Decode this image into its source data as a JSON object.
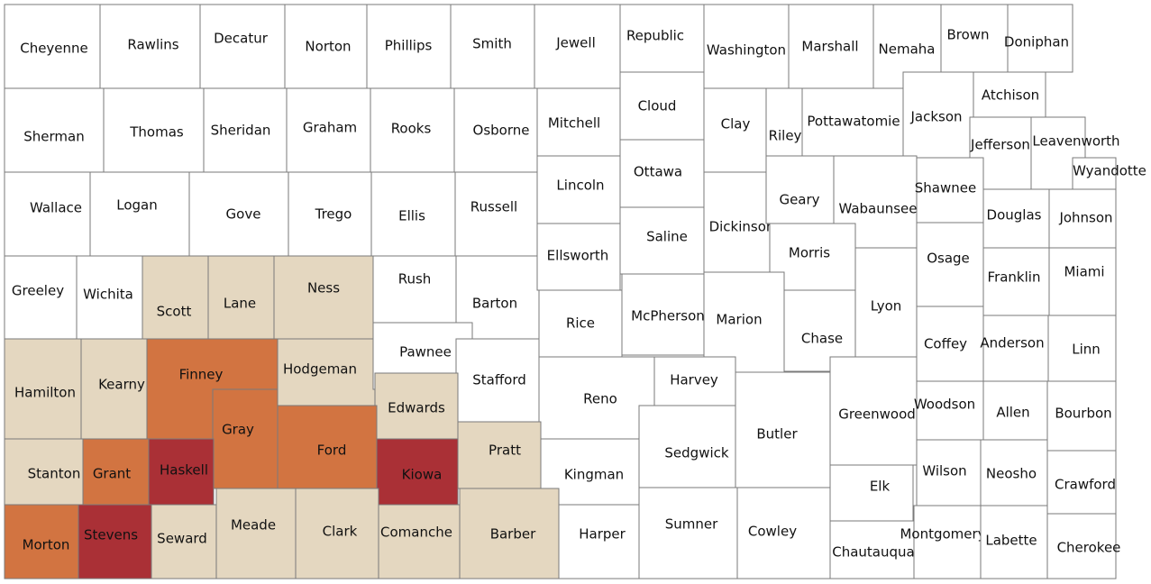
{
  "colors": {
    "none": "#ffffff",
    "low": "#e4d7c0",
    "medium": "#d27441",
    "high": "#aa3036",
    "border": "#7a7a7a"
  },
  "counties": [
    {
      "name": "Cheyenne",
      "level": "none"
    },
    {
      "name": "Rawlins",
      "level": "none"
    },
    {
      "name": "Decatur",
      "level": "none"
    },
    {
      "name": "Norton",
      "level": "none"
    },
    {
      "name": "Phillips",
      "level": "none"
    },
    {
      "name": "Smith",
      "level": "none"
    },
    {
      "name": "Jewell",
      "level": "none"
    },
    {
      "name": "Republic",
      "level": "none"
    },
    {
      "name": "Washington",
      "level": "none"
    },
    {
      "name": "Marshall",
      "level": "none"
    },
    {
      "name": "Nemaha",
      "level": "none"
    },
    {
      "name": "Brown",
      "level": "none"
    },
    {
      "name": "Doniphan",
      "level": "none"
    },
    {
      "name": "Sherman",
      "level": "none"
    },
    {
      "name": "Thomas",
      "level": "none"
    },
    {
      "name": "Sheridan",
      "level": "none"
    },
    {
      "name": "Graham",
      "level": "none"
    },
    {
      "name": "Rooks",
      "level": "none"
    },
    {
      "name": "Osborne",
      "level": "none"
    },
    {
      "name": "Mitchell",
      "level": "none"
    },
    {
      "name": "Cloud",
      "level": "none"
    },
    {
      "name": "Clay",
      "level": "none"
    },
    {
      "name": "Riley",
      "level": "none"
    },
    {
      "name": "Pottawatomie",
      "level": "none"
    },
    {
      "name": "Jackson",
      "level": "none"
    },
    {
      "name": "Atchison",
      "level": "none"
    },
    {
      "name": "Jefferson",
      "level": "none"
    },
    {
      "name": "Leavenworth",
      "level": "none"
    },
    {
      "name": "Wyandotte",
      "level": "none"
    },
    {
      "name": "Wallace",
      "level": "none"
    },
    {
      "name": "Logan",
      "level": "none"
    },
    {
      "name": "Gove",
      "level": "none"
    },
    {
      "name": "Trego",
      "level": "none"
    },
    {
      "name": "Ellis",
      "level": "none"
    },
    {
      "name": "Russell",
      "level": "none"
    },
    {
      "name": "Lincoln",
      "level": "none"
    },
    {
      "name": "Ottawa",
      "level": "none"
    },
    {
      "name": "Dickinson",
      "level": "none"
    },
    {
      "name": "Geary",
      "level": "none"
    },
    {
      "name": "Wabaunsee",
      "level": "none"
    },
    {
      "name": "Shawnee",
      "level": "none"
    },
    {
      "name": "Douglas",
      "level": "none"
    },
    {
      "name": "Johnson",
      "level": "none"
    },
    {
      "name": "Greeley",
      "level": "none"
    },
    {
      "name": "Wichita",
      "level": "none"
    },
    {
      "name": "Scott",
      "level": "low"
    },
    {
      "name": "Lane",
      "level": "low"
    },
    {
      "name": "Ness",
      "level": "low"
    },
    {
      "name": "Rush",
      "level": "none"
    },
    {
      "name": "Barton",
      "level": "none"
    },
    {
      "name": "Ellsworth",
      "level": "none"
    },
    {
      "name": "Saline",
      "level": "none"
    },
    {
      "name": "Morris",
      "level": "none"
    },
    {
      "name": "Osage",
      "level": "none"
    },
    {
      "name": "Franklin",
      "level": "none"
    },
    {
      "name": "Miami",
      "level": "none"
    },
    {
      "name": "Hamilton",
      "level": "low"
    },
    {
      "name": "Kearny",
      "level": "low"
    },
    {
      "name": "Finney",
      "level": "medium"
    },
    {
      "name": "Hodgeman",
      "level": "low"
    },
    {
      "name": "Pawnee",
      "level": "none"
    },
    {
      "name": "Stafford",
      "level": "none"
    },
    {
      "name": "Rice",
      "level": "none"
    },
    {
      "name": "McPherson",
      "level": "none"
    },
    {
      "name": "Marion",
      "level": "none"
    },
    {
      "name": "Chase",
      "level": "none"
    },
    {
      "name": "Lyon",
      "level": "none"
    },
    {
      "name": "Coffey",
      "level": "none"
    },
    {
      "name": "Anderson",
      "level": "none"
    },
    {
      "name": "Linn",
      "level": "none"
    },
    {
      "name": "Gray",
      "level": "medium"
    },
    {
      "name": "Edwards",
      "level": "low"
    },
    {
      "name": "Ford",
      "level": "medium"
    },
    {
      "name": "Reno",
      "level": "none"
    },
    {
      "name": "Harvey",
      "level": "none"
    },
    {
      "name": "Butler",
      "level": "none"
    },
    {
      "name": "Greenwood",
      "level": "none"
    },
    {
      "name": "Woodson",
      "level": "none"
    },
    {
      "name": "Allen",
      "level": "none"
    },
    {
      "name": "Bourbon",
      "level": "none"
    },
    {
      "name": "Stanton",
      "level": "low"
    },
    {
      "name": "Grant",
      "level": "medium"
    },
    {
      "name": "Haskell",
      "level": "high"
    },
    {
      "name": "Kiowa",
      "level": "high"
    },
    {
      "name": "Pratt",
      "level": "low"
    },
    {
      "name": "Kingman",
      "level": "none"
    },
    {
      "name": "Sedgwick",
      "level": "none"
    },
    {
      "name": "Wilson",
      "level": "none"
    },
    {
      "name": "Neosho",
      "level": "none"
    },
    {
      "name": "Crawford",
      "level": "none"
    },
    {
      "name": "Elk",
      "level": "none"
    },
    {
      "name": "Morton",
      "level": "medium"
    },
    {
      "name": "Stevens",
      "level": "high"
    },
    {
      "name": "Seward",
      "level": "low"
    },
    {
      "name": "Meade",
      "level": "low"
    },
    {
      "name": "Clark",
      "level": "low"
    },
    {
      "name": "Comanche",
      "level": "low"
    },
    {
      "name": "Barber",
      "level": "low"
    },
    {
      "name": "Harper",
      "level": "none"
    },
    {
      "name": "Sumner",
      "level": "none"
    },
    {
      "name": "Cowley",
      "level": "none"
    },
    {
      "name": "Chautauqua",
      "level": "none"
    },
    {
      "name": "Montgomery",
      "level": "none"
    },
    {
      "name": "Labette",
      "level": "none"
    },
    {
      "name": "Cherokee",
      "level": "none"
    }
  ]
}
